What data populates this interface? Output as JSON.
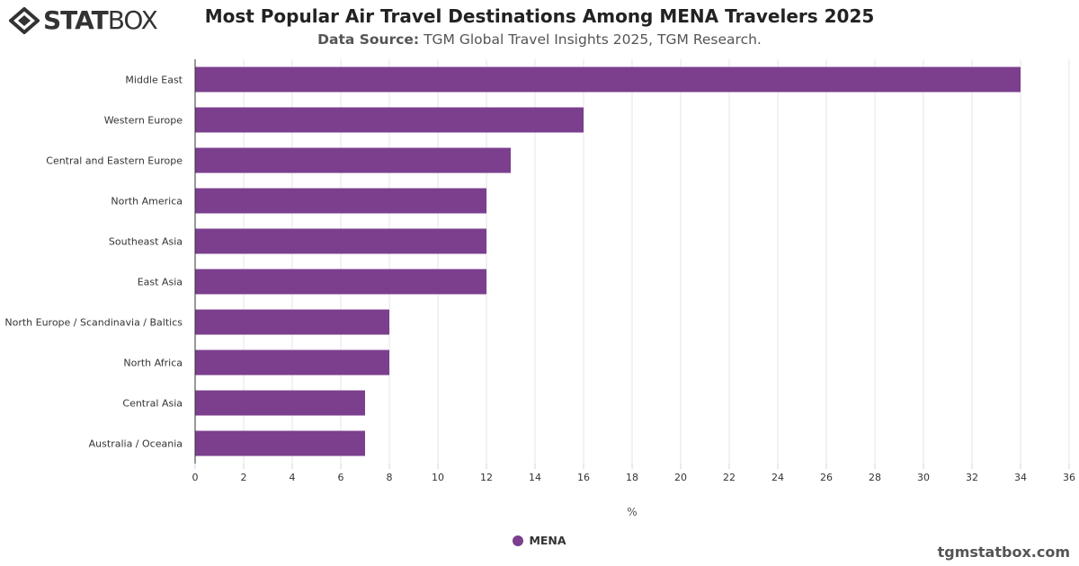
{
  "logo": {
    "part1": "STAT",
    "part2": "BOX"
  },
  "header": {
    "title": "Most Popular Air Travel Destinations Among MENA Travelers 2025",
    "source_label": "Data Source:",
    "source_text": "TGM Global Travel Insights 2025, TGM Research."
  },
  "legend": {
    "label": "MENA"
  },
  "credit": "tgmstatbox.com",
  "colors": {
    "bar": "#7b3f8e",
    "grid": "#e6e6e6",
    "axis": "#333333"
  },
  "chart_data": {
    "type": "bar",
    "orientation": "horizontal",
    "categories": [
      "Middle East",
      "Western Europe",
      "Central and Eastern Europe",
      "North America",
      "Southeast Asia",
      "East Asia",
      "North Europe / Scandinavia / Baltics",
      "North Africa",
      "Central Asia",
      "Australia / Oceania"
    ],
    "series": [
      {
        "name": "MENA",
        "values": [
          34,
          16,
          13,
          12,
          12,
          12,
          8,
          8,
          7,
          7
        ]
      }
    ],
    "xlabel": "%",
    "xlim": [
      0,
      36
    ],
    "xticks": [
      "0",
      "2",
      "4",
      "6",
      "8",
      "10",
      "12",
      "14",
      "16",
      "18",
      "20",
      "22",
      "24",
      "26",
      "28",
      "30",
      "32",
      "34",
      "36"
    ],
    "grid": true,
    "legend_position": "bottom-center"
  }
}
